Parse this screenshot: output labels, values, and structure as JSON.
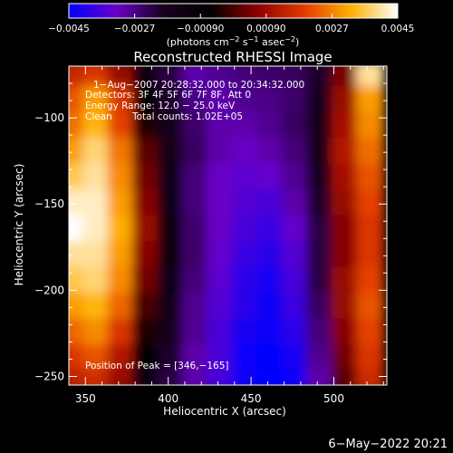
{
  "chart_data": {
    "type": "heatmap",
    "title": "Reconstructed RHESSI Image",
    "xlabel": "Heliocentric X (arcsec)",
    "ylabel": "Heliocentric Y (arcsec)",
    "xlim": [
      340,
      532
    ],
    "ylim": [
      -255,
      -70
    ],
    "x_ticks": [
      350,
      400,
      450,
      500
    ],
    "y_ticks": [
      -100,
      -150,
      -200,
      -250
    ],
    "x_tick_labels": [
      "350",
      "400",
      "450",
      "500"
    ],
    "y_tick_labels": [
      "−100",
      "−150",
      "−200",
      "−250"
    ],
    "colorbar": {
      "range": [
        -0.0045,
        0.0045
      ],
      "tick_labels": [
        "−0.0045",
        "−0.0027",
        "−0.00090",
        "0.00090",
        "0.0027",
        "0.0045"
      ],
      "units_prefix": "(photons cm",
      "units_exp1": "−2",
      "units_mid1": " s",
      "units_exp2": "−1",
      "units_mid2": " asec",
      "units_exp3": "−2",
      "units_suffix": ")",
      "colors": [
        "#0000ff",
        "#6a00c8",
        "#1a0020",
        "#000000",
        "#8c0000",
        "#e23a00",
        "#ffb000",
        "#ffffff"
      ]
    },
    "annotations": {
      "time_range": "1−Aug−2007 20:28:32.000 to 20:34:32.000",
      "detectors": "Detectors: 3F 4F 5F 6F 7F 8F, Att 0",
      "energy": "Energy Range: 12.0 − 25.0 keV",
      "clean_label": "Clean",
      "total_counts": "Total counts: 1.02E+05",
      "peak": "Position of Peak = [346,−165]"
    },
    "peak_position": [
      346,
      -165
    ],
    "intensity_grid": {
      "x": [
        342,
        357,
        372,
        387,
        402,
        417,
        432,
        447,
        462,
        477,
        492,
        507,
        522
      ],
      "y": [
        -75,
        -90,
        -105,
        -120,
        -135,
        -150,
        -165,
        -180,
        -195,
        -210,
        -225,
        -240,
        -252
      ],
      "z": [
        [
          0.0015,
          0.0018,
          0.0008,
          -0.001,
          -0.0022,
          -0.003,
          -0.0028,
          -0.0026,
          -0.0025,
          -0.0024,
          -0.002,
          0.0005,
          0.004
        ],
        [
          0.0022,
          0.003,
          0.0018,
          -0.0006,
          -0.002,
          -0.0027,
          -0.003,
          -0.0028,
          -0.0027,
          -0.0025,
          -0.0018,
          0.0008,
          0.003
        ],
        [
          0.0025,
          0.0033,
          0.002,
          -0.0004,
          -0.0018,
          -0.0025,
          -0.003,
          -0.003,
          -0.0028,
          -0.0024,
          -0.0016,
          0.001,
          0.0028
        ],
        [
          0.003,
          0.0038,
          0.0026,
          0.0002,
          -0.0016,
          -0.0024,
          -0.003,
          -0.0032,
          -0.003,
          -0.0026,
          -0.0016,
          0.0012,
          0.0025
        ],
        [
          0.0036,
          0.004,
          0.0028,
          0.0004,
          -0.0015,
          -0.0026,
          -0.0032,
          -0.0034,
          -0.0033,
          -0.0028,
          -0.0018,
          0.001,
          0.0022
        ],
        [
          0.0042,
          0.0042,
          0.003,
          0.0006,
          -0.0014,
          -0.0026,
          -0.0032,
          -0.0035,
          -0.0036,
          -0.003,
          -0.002,
          0.0008,
          0.002
        ],
        [
          0.0045,
          0.0042,
          0.0032,
          0.0008,
          -0.0012,
          -0.0025,
          -0.0032,
          -0.0036,
          -0.0038,
          -0.0033,
          -0.0022,
          0.0006,
          0.0018
        ],
        [
          0.004,
          0.004,
          0.003,
          0.0006,
          -0.0012,
          -0.0025,
          -0.0033,
          -0.0038,
          -0.004,
          -0.0035,
          -0.0022,
          0.0006,
          0.0018
        ],
        [
          0.0036,
          0.0038,
          0.0028,
          0.0004,
          -0.0014,
          -0.0026,
          -0.0034,
          -0.004,
          -0.0042,
          -0.0036,
          -0.0022,
          0.0008,
          0.002
        ],
        [
          0.003,
          0.0033,
          0.0024,
          0.0,
          -0.0016,
          -0.0028,
          -0.0035,
          -0.004,
          -0.0043,
          -0.0038,
          -0.0024,
          0.0008,
          0.0022
        ],
        [
          0.0024,
          0.0028,
          0.0018,
          -0.0004,
          -0.0018,
          -0.0028,
          -0.0036,
          -0.0042,
          -0.0044,
          -0.004,
          -0.0026,
          0.0006,
          0.002
        ],
        [
          0.0018,
          0.0022,
          0.0012,
          -0.0008,
          -0.002,
          -0.003,
          -0.0036,
          -0.0044,
          -0.0045,
          -0.0042,
          -0.0028,
          0.0004,
          0.0018
        ],
        [
          0.0014,
          0.0016,
          0.0008,
          -0.0012,
          -0.0022,
          -0.003,
          -0.0036,
          -0.0043,
          -0.0045,
          -0.0043,
          -0.003,
          0.0002,
          0.0016
        ]
      ]
    }
  },
  "footer": {
    "date": "6−May−2022 20:21"
  }
}
